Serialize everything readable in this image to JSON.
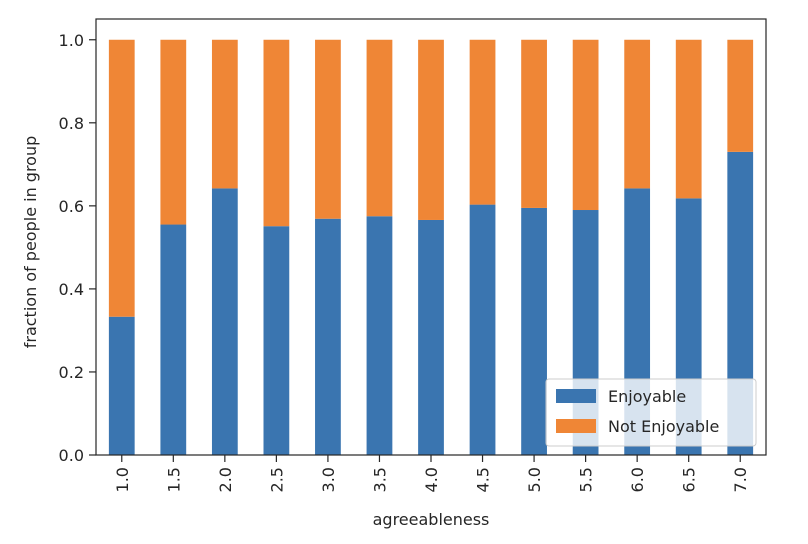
{
  "chart_data": {
    "type": "bar",
    "stacked": true,
    "categories": [
      "1.0",
      "1.5",
      "2.0",
      "2.5",
      "3.0",
      "3.5",
      "4.0",
      "4.5",
      "5.0",
      "5.5",
      "6.0",
      "6.5",
      "7.0"
    ],
    "series": [
      {
        "name": "Enjoyable",
        "color": "#3a75b0",
        "values": [
          0.333,
          0.555,
          0.642,
          0.551,
          0.569,
          0.575,
          0.566,
          0.603,
          0.595,
          0.59,
          0.642,
          0.618,
          0.73
        ]
      },
      {
        "name": "Not Enjoyable",
        "color": "#ef8636",
        "values": [
          0.667,
          0.445,
          0.358,
          0.449,
          0.431,
          0.425,
          0.434,
          0.397,
          0.405,
          0.41,
          0.358,
          0.382,
          0.27
        ]
      }
    ],
    "xlabel": "agreeableness",
    "ylabel": "fraction of people in group",
    "ylim": [
      0,
      1.05
    ],
    "yticks": [
      "0.0",
      "0.2",
      "0.4",
      "0.6",
      "0.8",
      "1.0"
    ],
    "ytick_values": [
      0,
      0.2,
      0.4,
      0.6,
      0.8,
      1.0
    ],
    "legend": "lower-right",
    "grid": false
  }
}
